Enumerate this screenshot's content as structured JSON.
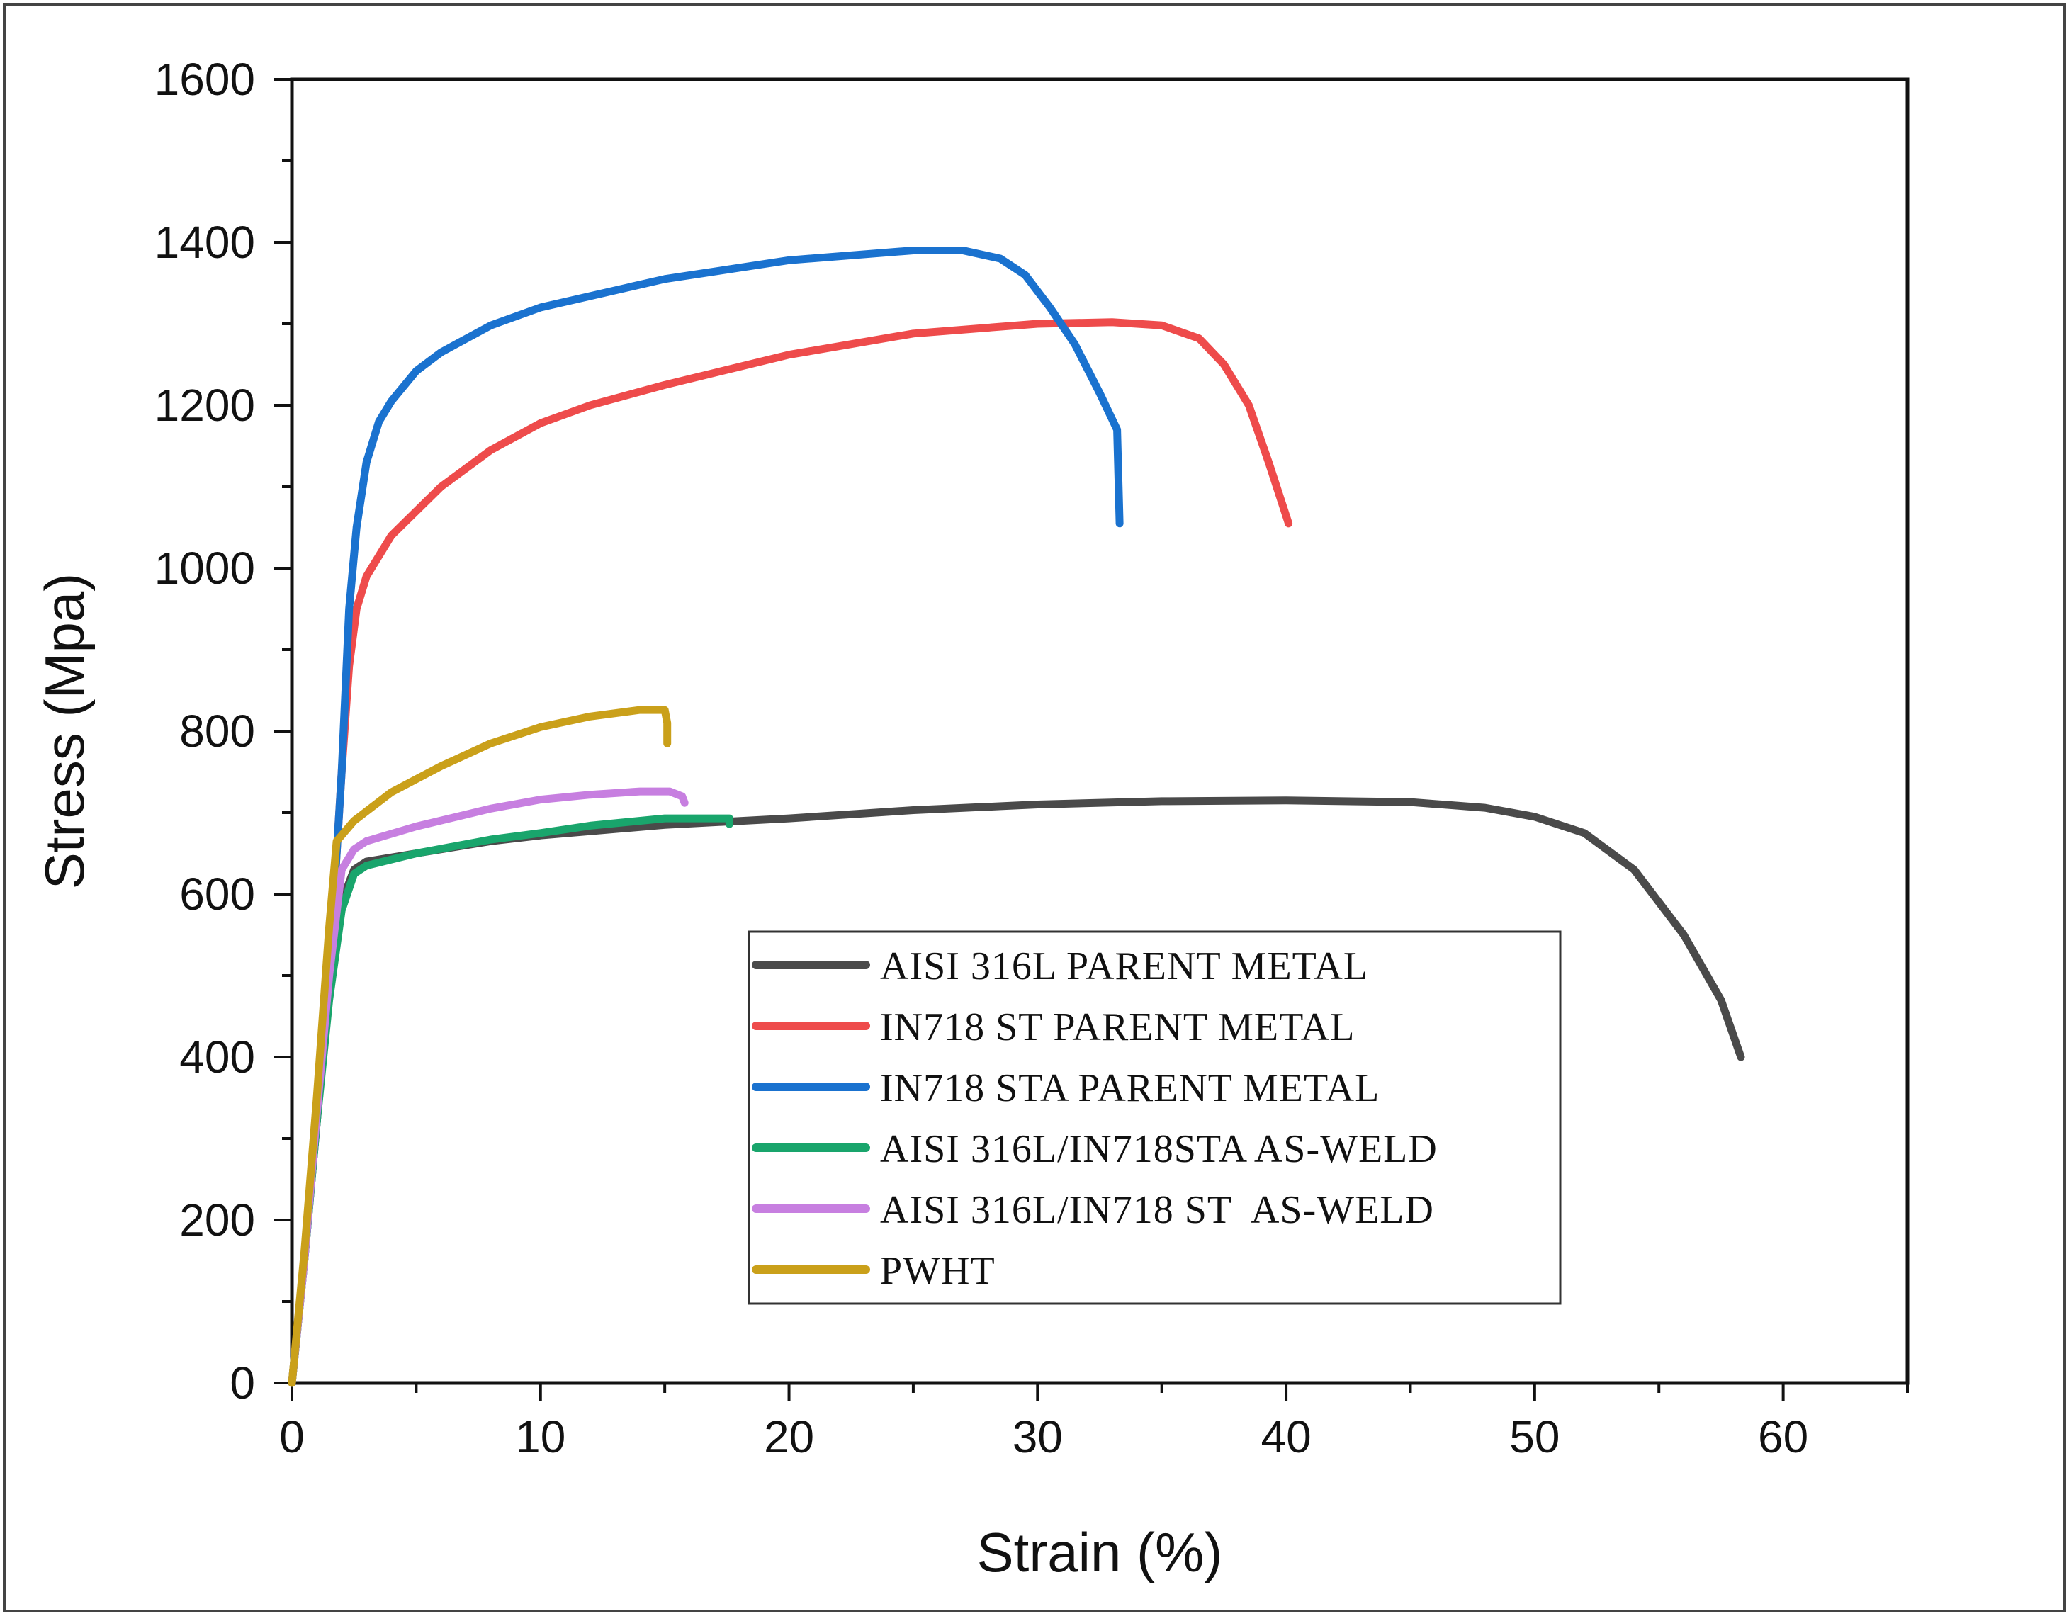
{
  "chart_data": {
    "type": "line",
    "title": "",
    "xlabel": "Strain (%)",
    "ylabel": "Stress (Mpa)",
    "xlim": [
      0,
      65
    ],
    "ylim": [
      0,
      1600
    ],
    "x_ticks": [
      0,
      10,
      20,
      30,
      40,
      50,
      60
    ],
    "y_ticks": [
      0,
      200,
      400,
      600,
      800,
      1000,
      1200,
      1400,
      1600
    ],
    "grid": false,
    "legend_position": "lower-right",
    "series": [
      {
        "name": "AISI 316L PARENT METAL",
        "color": "#4a4a4a",
        "points": [
          [
            0,
            0
          ],
          [
            0.5,
            150
          ],
          [
            1.0,
            320
          ],
          [
            1.5,
            480
          ],
          [
            2.0,
            590
          ],
          [
            2.5,
            630
          ],
          [
            3,
            640
          ],
          [
            5,
            650
          ],
          [
            8,
            665
          ],
          [
            10,
            672
          ],
          [
            15,
            685
          ],
          [
            20,
            693
          ],
          [
            25,
            703
          ],
          [
            30,
            710
          ],
          [
            35,
            714
          ],
          [
            40,
            715
          ],
          [
            45,
            713
          ],
          [
            48,
            706
          ],
          [
            50,
            695
          ],
          [
            52,
            675
          ],
          [
            54,
            630
          ],
          [
            56,
            550
          ],
          [
            57.5,
            470
          ],
          [
            58.3,
            400
          ]
        ]
      },
      {
        "name": "IN718 ST PARENT METAL",
        "color": "#ee4b4b",
        "points": [
          [
            0,
            0
          ],
          [
            0.5,
            150
          ],
          [
            1.0,
            320
          ],
          [
            1.5,
            500
          ],
          [
            2.0,
            750
          ],
          [
            2.3,
            880
          ],
          [
            2.6,
            950
          ],
          [
            3,
            990
          ],
          [
            4,
            1040
          ],
          [
            6,
            1100
          ],
          [
            8,
            1145
          ],
          [
            10,
            1178
          ],
          [
            12,
            1200
          ],
          [
            15,
            1225
          ],
          [
            20,
            1262
          ],
          [
            25,
            1288
          ],
          [
            30,
            1300
          ],
          [
            33,
            1302
          ],
          [
            35,
            1298
          ],
          [
            36.5,
            1282
          ],
          [
            37.5,
            1250
          ],
          [
            38.5,
            1200
          ],
          [
            39.3,
            1130
          ],
          [
            40.1,
            1055
          ]
        ]
      },
      {
        "name": "IN718 STA PARENT METAL",
        "color": "#1a72cf",
        "points": [
          [
            0,
            0
          ],
          [
            0.5,
            150
          ],
          [
            1.0,
            320
          ],
          [
            1.5,
            500
          ],
          [
            2.0,
            750
          ],
          [
            2.3,
            950
          ],
          [
            2.6,
            1050
          ],
          [
            3,
            1130
          ],
          [
            3.5,
            1180
          ],
          [
            4,
            1205
          ],
          [
            5,
            1242
          ],
          [
            6,
            1265
          ],
          [
            8,
            1298
          ],
          [
            10,
            1320
          ],
          [
            15,
            1355
          ],
          [
            20,
            1378
          ],
          [
            25,
            1390
          ],
          [
            27,
            1390
          ],
          [
            28.5,
            1380
          ],
          [
            29.5,
            1360
          ],
          [
            30.5,
            1320
          ],
          [
            31.5,
            1275
          ],
          [
            32.5,
            1215
          ],
          [
            33.2,
            1170
          ],
          [
            33.3,
            1055
          ]
        ]
      },
      {
        "name": "AISI 316L/IN718STA AS-WELD",
        "color": "#19a56c",
        "points": [
          [
            0,
            0
          ],
          [
            0.5,
            150
          ],
          [
            1.0,
            320
          ],
          [
            1.5,
            470
          ],
          [
            2.0,
            580
          ],
          [
            2.5,
            625
          ],
          [
            3,
            635
          ],
          [
            5,
            650
          ],
          [
            8,
            667
          ],
          [
            10,
            675
          ],
          [
            12,
            684
          ],
          [
            15,
            693
          ],
          [
            17.6,
            693
          ],
          [
            17.6,
            686
          ]
        ]
      },
      {
        "name": "AISI 316L/IN718 ST  AS-WELD",
        "color": "#c77fe0",
        "points": [
          [
            0,
            0
          ],
          [
            0.5,
            150
          ],
          [
            1.0,
            330
          ],
          [
            1.5,
            500
          ],
          [
            2.0,
            630
          ],
          [
            2.5,
            655
          ],
          [
            3,
            665
          ],
          [
            5,
            683
          ],
          [
            8,
            705
          ],
          [
            10,
            716
          ],
          [
            12,
            722
          ],
          [
            14,
            726
          ],
          [
            15.2,
            726
          ],
          [
            15.7,
            720
          ],
          [
            15.8,
            712
          ]
        ]
      },
      {
        "name": "PWHT",
        "color": "#caa01a",
        "points": [
          [
            0,
            0
          ],
          [
            0.5,
            160
          ],
          [
            1.0,
            350
          ],
          [
            1.5,
            560
          ],
          [
            1.8,
            665
          ],
          [
            2.5,
            690
          ],
          [
            4,
            725
          ],
          [
            6,
            757
          ],
          [
            8,
            785
          ],
          [
            10,
            805
          ],
          [
            12,
            818
          ],
          [
            14,
            826
          ],
          [
            15,
            826
          ],
          [
            15.1,
            810
          ],
          [
            15.1,
            785
          ]
        ]
      }
    ]
  }
}
